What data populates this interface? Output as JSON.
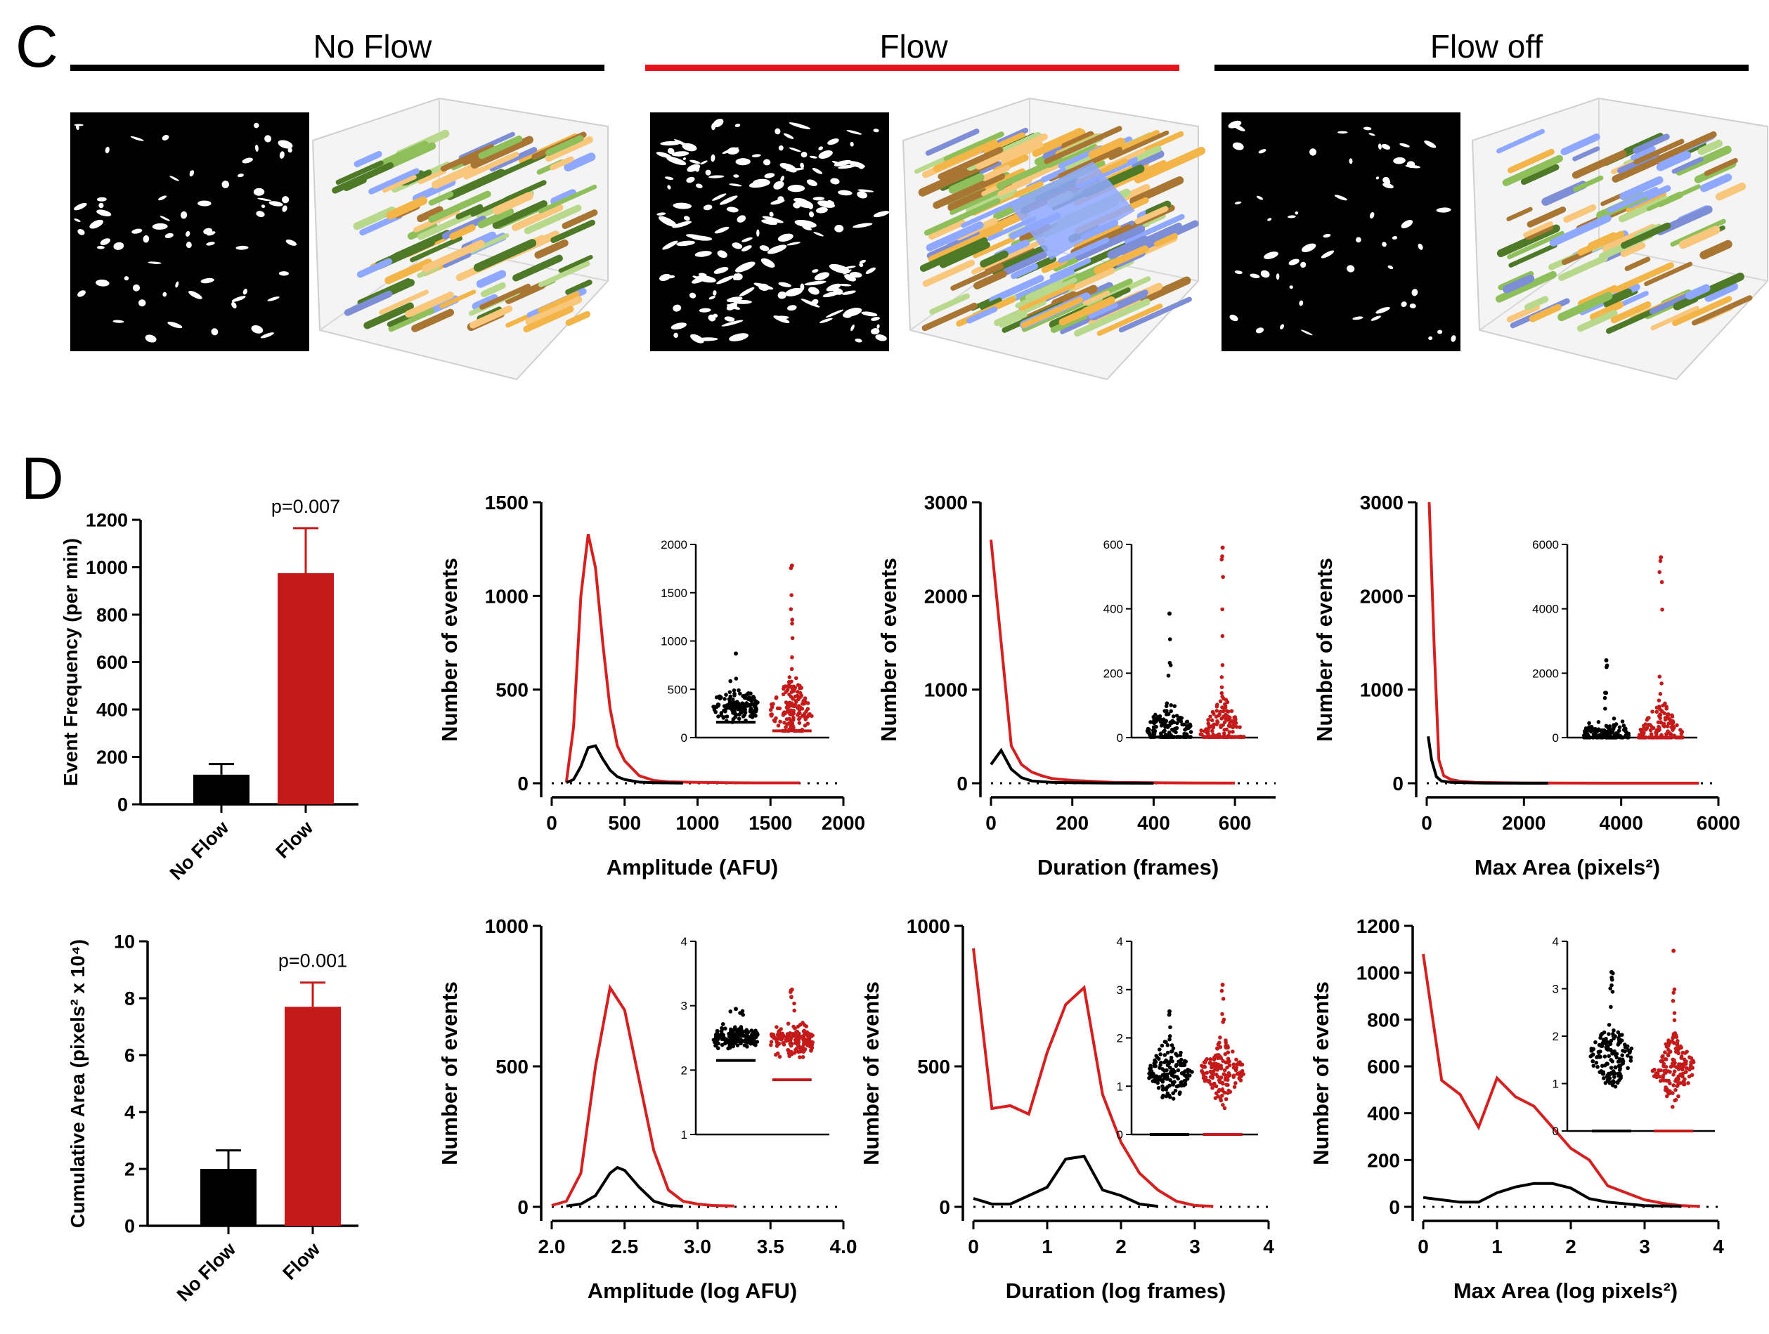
{
  "panel_c": {
    "letter": "C",
    "conditions": [
      {
        "label": "No Flow",
        "bar_color": "#000000"
      },
      {
        "label": "Flow",
        "bar_color": "#e8141b"
      },
      {
        "label": "Flow off",
        "bar_color": "#000000"
      }
    ]
  },
  "panel_d": {
    "letter": "D"
  },
  "colors": {
    "noflow": "#000000",
    "flow": "#c41a1a",
    "flow_line": "#d62020",
    "blobs": [
      "#8fa8ff",
      "#4e7a28",
      "#8fbf5a",
      "#b8d98c",
      "#f3b548",
      "#a87532",
      "#f8c77c",
      "#7d8dd6"
    ]
  },
  "chart_data": [
    {
      "id": "event-frequency",
      "type": "bar",
      "categories": [
        "No Flow",
        "Flow"
      ],
      "values": [
        125,
        975
      ],
      "errors": [
        45,
        190
      ],
      "ylabel": "Event Frequency (per min)",
      "ylim": [
        0,
        1200
      ],
      "yticks": [
        "0",
        "200",
        "400",
        "600",
        "800",
        "1000",
        "1200"
      ],
      "annotation": "p=0.007"
    },
    {
      "id": "cumulative-area",
      "type": "bar",
      "categories": [
        "No Flow",
        "Flow"
      ],
      "values": [
        2.0,
        7.7
      ],
      "errors": [
        0.65,
        0.85
      ],
      "ylabel": "Cumulative Area (pixels² x 10⁴)",
      "ylim": [
        0,
        10
      ],
      "yticks": [
        "0",
        "2",
        "4",
        "6",
        "8",
        "10"
      ],
      "annotation": "p=0.001"
    },
    {
      "id": "amplitude-hist",
      "type": "line",
      "xlabel": "Amplitude (AFU)",
      "ylabel": "Number of events",
      "xlim": [
        0,
        2000
      ],
      "ylim": [
        0,
        1500
      ],
      "xticks": [
        "0",
        "500",
        "1000",
        "1500",
        "2000"
      ],
      "yticks": [
        "0",
        "500",
        "1000",
        "1500"
      ],
      "series": [
        {
          "name": "Flow",
          "x": [
            100,
            150,
            200,
            250,
            300,
            350,
            400,
            450,
            500,
            600,
            700,
            800,
            1000,
            1200,
            1400,
            1700
          ],
          "y": [
            5,
            300,
            1000,
            1330,
            1150,
            750,
            400,
            200,
            120,
            40,
            15,
            8,
            5,
            3,
            2,
            2
          ]
        },
        {
          "name": "No Flow",
          "x": [
            100,
            150,
            200,
            250,
            300,
            350,
            400,
            450,
            500,
            600,
            700,
            800,
            900
          ],
          "y": [
            3,
            20,
            90,
            190,
            200,
            130,
            70,
            35,
            20,
            6,
            3,
            2,
            1
          ]
        }
      ],
      "inset": {
        "ylim": [
          0,
          2000
        ],
        "yticks": [
          "0",
          "500",
          "1000",
          "1500",
          "2000"
        ],
        "groups": [
          {
            "name": "No Flow",
            "min": 160,
            "max": 870,
            "center": 320
          },
          {
            "name": "Flow",
            "min": 70,
            "max": 1780,
            "center": 290
          }
        ]
      }
    },
    {
      "id": "duration-hist",
      "type": "line",
      "xlabel": "Duration (frames)",
      "ylabel": "Number of events",
      "xlim": [
        0,
        700
      ],
      "ylim": [
        0,
        3000
      ],
      "xticks": [
        "0",
        "200",
        "400",
        "600"
      ],
      "yticks": [
        "0",
        "1000",
        "2000",
        "3000"
      ],
      "series": [
        {
          "name": "Flow",
          "x": [
            0,
            25,
            50,
            75,
            100,
            125,
            150,
            200,
            250,
            300,
            400,
            500,
            600
          ],
          "y": [
            2600,
            1500,
            400,
            200,
            120,
            80,
            50,
            30,
            20,
            10,
            5,
            3,
            2
          ]
        },
        {
          "name": "No Flow",
          "x": [
            0,
            25,
            50,
            75,
            100,
            150,
            200,
            300,
            400
          ],
          "y": [
            200,
            350,
            150,
            60,
            25,
            10,
            5,
            2,
            1
          ]
        }
      ],
      "inset": {
        "ylim": [
          0,
          600
        ],
        "yticks": [
          "0",
          "200",
          "400",
          "600"
        ],
        "groups": [
          {
            "name": "No Flow",
            "min": 2,
            "max": 385,
            "center": 20
          },
          {
            "name": "Flow",
            "min": 2,
            "max": 590,
            "center": 15
          }
        ]
      }
    },
    {
      "id": "maxarea-hist",
      "type": "line",
      "xlabel": "Max Area (pixels²)",
      "ylabel": "Number of events",
      "xlim": [
        0,
        6000
      ],
      "ylim": [
        0,
        3000
      ],
      "xticks": [
        "0",
        "2000",
        "4000",
        "6000"
      ],
      "yticks": [
        "0",
        "1000",
        "2000",
        "3000"
      ],
      "series": [
        {
          "name": "Flow",
          "x": [
            50,
            150,
            250,
            350,
            500,
            700,
            1000,
            1500,
            2000,
            3000,
            4000,
            5600
          ],
          "y": [
            3000,
            1500,
            250,
            80,
            40,
            20,
            10,
            5,
            3,
            2,
            1,
            1
          ]
        },
        {
          "name": "No Flow",
          "x": [
            30,
            100,
            200,
            300,
            500,
            800,
            1200,
            2000,
            2500
          ],
          "y": [
            500,
            250,
            70,
            25,
            10,
            5,
            2,
            1,
            1
          ]
        }
      ],
      "inset": {
        "ylim": [
          0,
          6000
        ],
        "yticks": [
          "0",
          "2000",
          "4000",
          "6000"
        ],
        "groups": [
          {
            "name": "No Flow",
            "min": 5,
            "max": 2400,
            "center": 60
          },
          {
            "name": "Flow",
            "min": 5,
            "max": 5600,
            "center": 50
          }
        ]
      }
    },
    {
      "id": "log-amplitude-hist",
      "type": "line",
      "xlabel": "Amplitude (log AFU)",
      "ylabel": "Number of events",
      "xlim": [
        2.0,
        4.0
      ],
      "ylim": [
        0,
        1000
      ],
      "xticks": [
        "2.0",
        "2.5",
        "3.0",
        "3.5",
        "4.0"
      ],
      "yticks": [
        "0",
        "500",
        "1000"
      ],
      "series": [
        {
          "name": "Flow",
          "x": [
            2.0,
            2.1,
            2.2,
            2.3,
            2.4,
            2.5,
            2.6,
            2.7,
            2.8,
            2.9,
            3.0,
            3.1,
            3.25
          ],
          "y": [
            5,
            20,
            120,
            500,
            780,
            700,
            450,
            200,
            60,
            20,
            10,
            5,
            3
          ]
        },
        {
          "name": "No Flow",
          "x": [
            2.1,
            2.2,
            2.3,
            2.4,
            2.45,
            2.5,
            2.6,
            2.7,
            2.8,
            2.9
          ],
          "y": [
            3,
            10,
            40,
            120,
            140,
            130,
            70,
            20,
            5,
            2
          ]
        }
      ],
      "inset": {
        "ylim": [
          1,
          4
        ],
        "yticks": [
          "1",
          "2",
          "3",
          "4"
        ],
        "groups": [
          {
            "name": "No Flow",
            "min": 2.15,
            "max": 2.95,
            "center": 2.5
          },
          {
            "name": "Flow",
            "min": 1.85,
            "max": 3.25,
            "center": 2.45
          }
        ]
      }
    },
    {
      "id": "log-duration-hist",
      "type": "line",
      "xlabel": "Duration (log frames)",
      "ylabel": "Number of events",
      "xlim": [
        0,
        4
      ],
      "ylim": [
        0,
        1000
      ],
      "xticks": [
        "0",
        "1",
        "2",
        "3",
        "4"
      ],
      "yticks": [
        "0",
        "500",
        "1000"
      ],
      "series": [
        {
          "name": "Flow",
          "x": [
            0,
            0.25,
            0.5,
            0.75,
            1.0,
            1.25,
            1.5,
            1.75,
            2.0,
            2.25,
            2.5,
            2.75,
            3.0,
            3.25
          ],
          "y": [
            920,
            350,
            360,
            330,
            550,
            720,
            780,
            400,
            230,
            120,
            60,
            20,
            5,
            2
          ]
        },
        {
          "name": "No Flow",
          "x": [
            0,
            0.25,
            0.5,
            0.75,
            1.0,
            1.25,
            1.5,
            1.75,
            2.0,
            2.25,
            2.5
          ],
          "y": [
            30,
            10,
            10,
            40,
            70,
            170,
            180,
            60,
            40,
            10,
            2
          ]
        }
      ],
      "inset": {
        "ylim": [
          0,
          4
        ],
        "yticks": [
          "0",
          "1",
          "2",
          "3",
          "4"
        ],
        "groups": [
          {
            "name": "No Flow",
            "min": 0,
            "max": 2.55,
            "center": 1.3
          },
          {
            "name": "Flow",
            "min": 0,
            "max": 3.1,
            "center": 1.3
          }
        ]
      }
    },
    {
      "id": "log-maxarea-hist",
      "type": "line",
      "xlabel": "Max Area (log pixels²)",
      "ylabel": "Number of events",
      "xlim": [
        0,
        4
      ],
      "ylim": [
        0,
        1200
      ],
      "xticks": [
        "0",
        "1",
        "2",
        "3",
        "4"
      ],
      "yticks": [
        "0",
        "200",
        "400",
        "600",
        "800",
        "1000",
        "1200"
      ],
      "series": [
        {
          "name": "Flow",
          "x": [
            0,
            0.25,
            0.5,
            0.75,
            1.0,
            1.25,
            1.5,
            1.75,
            2.0,
            2.25,
            2.5,
            2.75,
            3.0,
            3.25,
            3.5,
            3.75
          ],
          "y": [
            1080,
            540,
            480,
            340,
            550,
            470,
            430,
            340,
            250,
            200,
            90,
            60,
            30,
            15,
            5,
            2
          ]
        },
        {
          "name": "No Flow",
          "x": [
            0,
            0.25,
            0.5,
            0.75,
            1.0,
            1.25,
            1.5,
            1.75,
            2.0,
            2.25,
            2.5,
            3.0,
            3.5
          ],
          "y": [
            40,
            30,
            20,
            20,
            60,
            85,
            100,
            100,
            80,
            35,
            20,
            5,
            2
          ]
        }
      ],
      "inset": {
        "ylim": [
          0,
          4
        ],
        "yticks": [
          "0",
          "1",
          "2",
          "3",
          "4"
        ],
        "groups": [
          {
            "name": "No Flow",
            "min": 0,
            "max": 3.35,
            "center": 1.6
          },
          {
            "name": "Flow",
            "min": 0,
            "max": 3.8,
            "center": 1.3
          }
        ]
      }
    }
  ]
}
